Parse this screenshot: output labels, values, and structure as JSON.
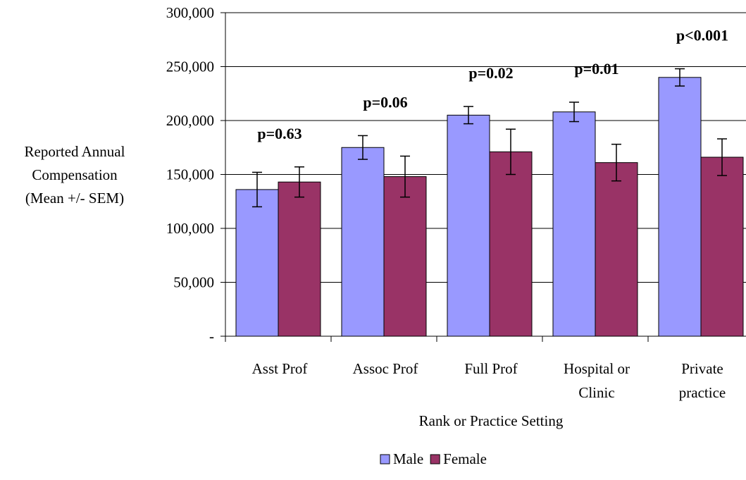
{
  "chart_data": {
    "type": "bar",
    "title": "",
    "xlabel": "Rank or Practice Setting",
    "ylabel_lines": [
      "Reported Annual",
      "Compensation",
      "(Mean +/- SEM)"
    ],
    "ylim": [
      0,
      300000
    ],
    "yticks": [
      {
        "value": 0,
        "label": "-"
      },
      {
        "value": 50000,
        "label": "50,000"
      },
      {
        "value": 100000,
        "label": "100,000"
      },
      {
        "value": 150000,
        "label": "150,000"
      },
      {
        "value": 200000,
        "label": "200,000"
      },
      {
        "value": 250000,
        "label": "250,000"
      },
      {
        "value": 300000,
        "label": "300,000"
      }
    ],
    "categories": [
      {
        "lines": [
          "Asst Prof"
        ]
      },
      {
        "lines": [
          "Assoc Prof"
        ]
      },
      {
        "lines": [
          "Full Prof"
        ]
      },
      {
        "lines": [
          "Hospital or",
          "Clinic"
        ]
      },
      {
        "lines": [
          "Private",
          "practice"
        ]
      }
    ],
    "series": [
      {
        "name": "Male",
        "color": "#9999ff",
        "values": [
          136000,
          175000,
          205000,
          208000,
          240000
        ],
        "errors": [
          16000,
          11000,
          8000,
          9000,
          8000
        ]
      },
      {
        "name": "Female",
        "color": "#993366",
        "values": [
          143000,
          148000,
          171000,
          161000,
          166000
        ],
        "errors": [
          14000,
          19000,
          21000,
          17000,
          17000
        ]
      }
    ],
    "annotations": [
      "p=0.63",
      "p=0.06",
      "p=0.02",
      "p=0.01",
      "p<0.001"
    ],
    "grid": true,
    "legend_position": "bottom"
  }
}
